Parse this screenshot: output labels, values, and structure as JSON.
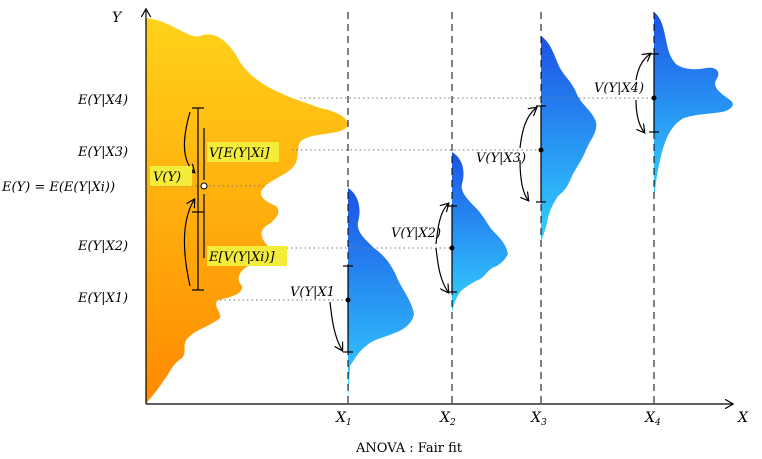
{
  "axes": {
    "y_label": "Y",
    "x_label": "X",
    "x_ticks": [
      "X1",
      "X2",
      "X3",
      "X4"
    ],
    "x_tick_text": [
      "X",
      "X",
      "X",
      "X"
    ],
    "x_tick_sub": [
      "1",
      "2",
      "3",
      "4"
    ]
  },
  "y_labels": {
    "e4": "E(Y|X4)",
    "e3": "E(Y|X3)",
    "ey": "E(Y) = E(E(Y|Xi))",
    "e2": "E(Y|X2)",
    "e1": "E(Y|X1)"
  },
  "annotations": {
    "v_y": "V(Y)",
    "v_e": "V[E(Y|Xi]",
    "e_v": "E[V(Y|Xi)]",
    "v1": "V(Y|X1",
    "v2": "V(Y|X2)",
    "v3": "V(Y|X3)",
    "v4": "V(Y|X4)"
  },
  "caption": "ANOVA : Fair fit",
  "colors": {
    "marginal_top": "#ffd21a",
    "marginal_bottom": "#ff8a00",
    "conditional_top": "#1c52e6",
    "conditional_bottom": "#33d2ff",
    "highlight": "#f4ec3a"
  }
}
